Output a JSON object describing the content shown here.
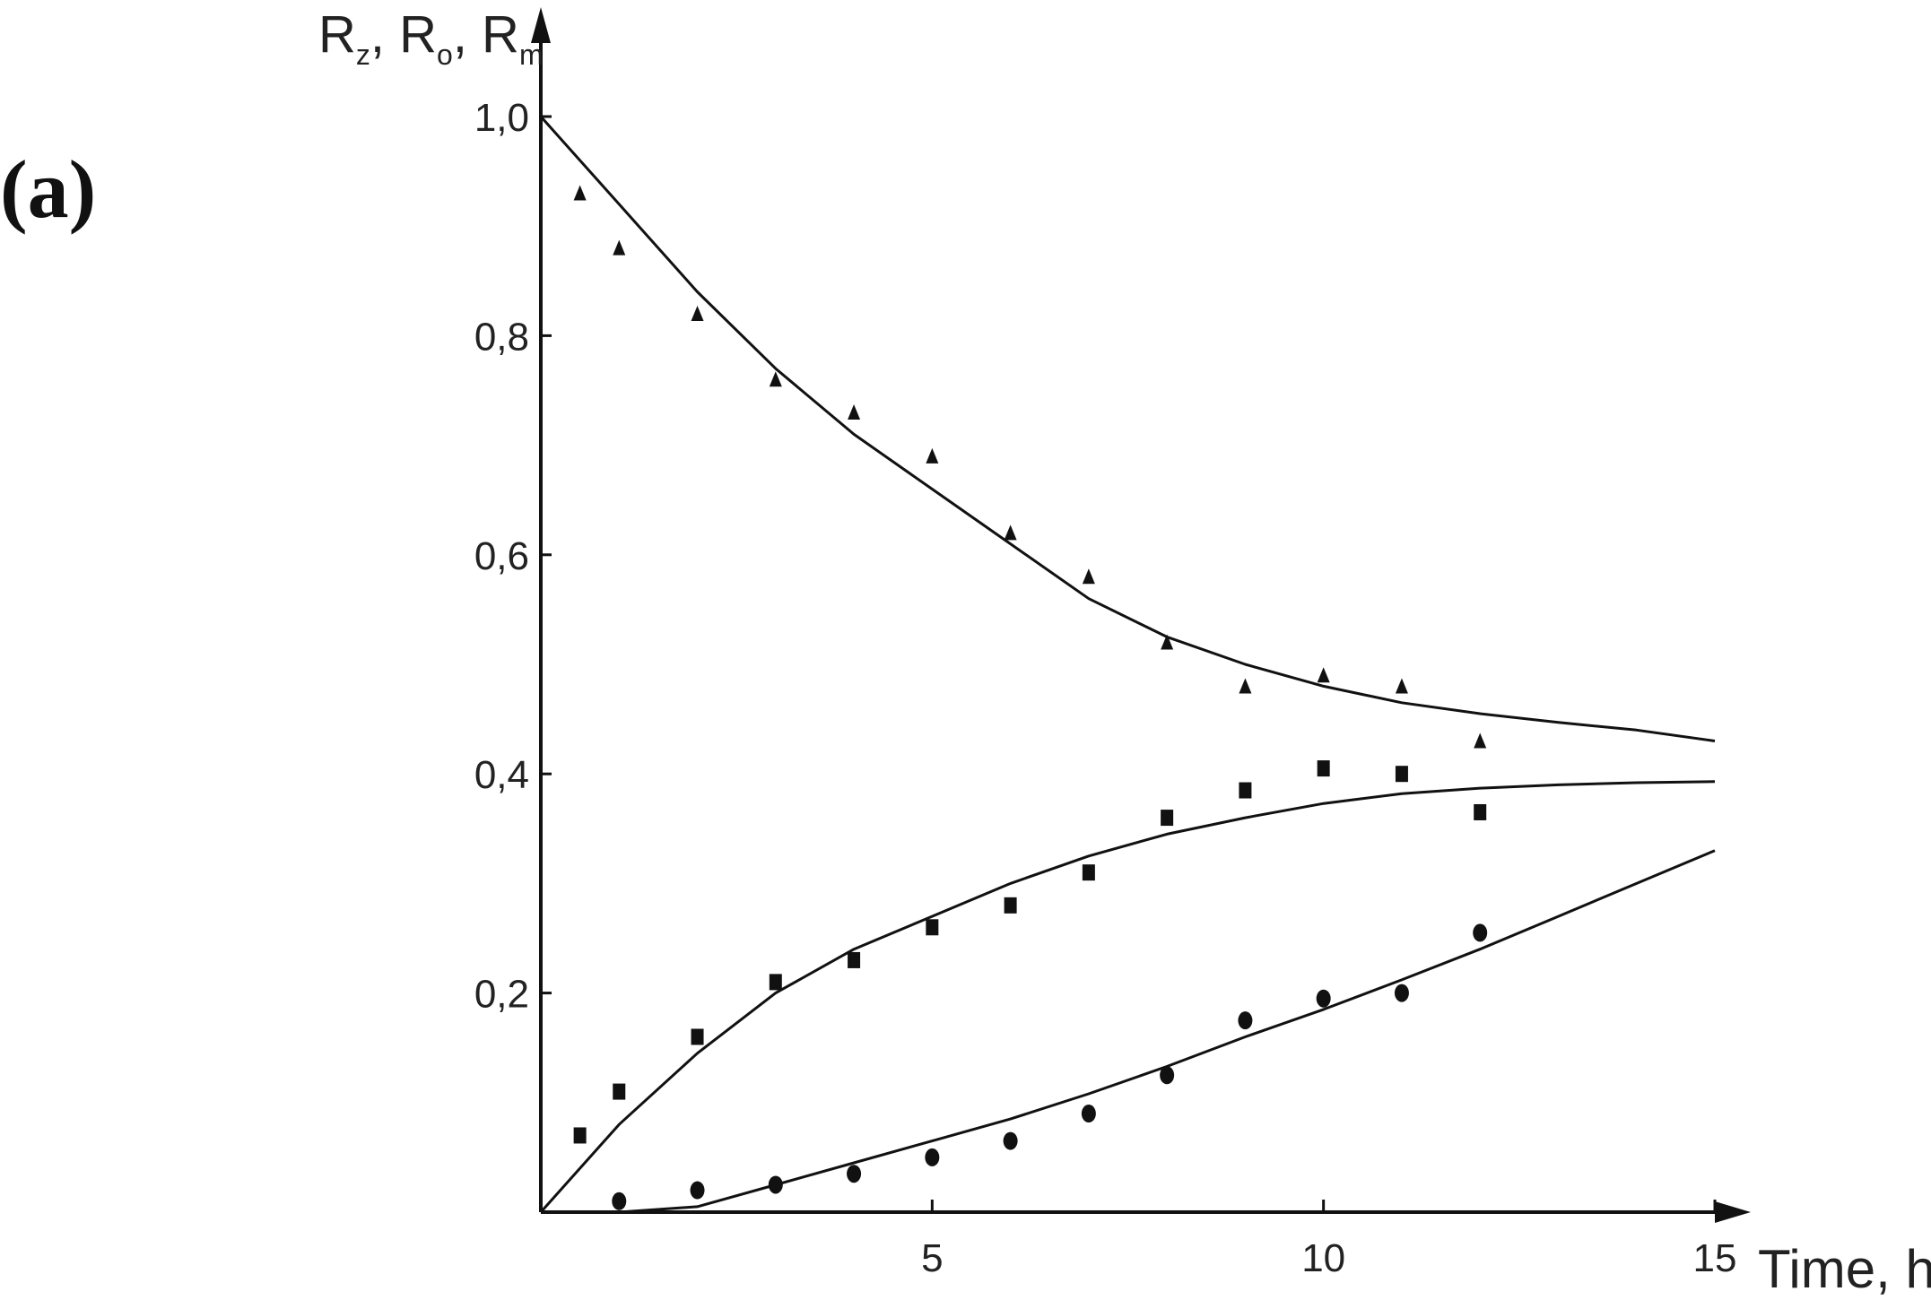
{
  "panel_label": "(a)",
  "chart_data": {
    "type": "scatter",
    "title": "",
    "ylabel": {
      "text": "R",
      "subs": [
        "z",
        "o",
        "m"
      ],
      "sep": ", "
    },
    "xlabel": "Time, h",
    "xlim": [
      0,
      15
    ],
    "ylim": [
      0,
      1.0
    ],
    "x_ticks": [
      "5",
      "10",
      "15"
    ],
    "x_tick_values": [
      5,
      10,
      15
    ],
    "y_ticks": [
      "0,2",
      "0,4",
      "0,6",
      "0,8",
      "1,0"
    ],
    "y_tick_values": [
      0.2,
      0.4,
      0.6,
      0.8,
      1.0
    ],
    "grid": false,
    "legend": "none",
    "series": [
      {
        "marker": "triangle",
        "x": [
          0.5,
          1,
          2,
          3,
          4,
          5,
          6,
          7,
          8,
          9,
          10,
          11,
          12
        ],
        "y": [
          0.93,
          0.88,
          0.82,
          0.76,
          0.73,
          0.69,
          0.62,
          0.58,
          0.52,
          0.48,
          0.49,
          0.48,
          0.43
        ],
        "fit_x": [
          0,
          1,
          2,
          3,
          4,
          5,
          6,
          7,
          8,
          9,
          10,
          11,
          12,
          13,
          14,
          15
        ],
        "fit_y": [
          1.0,
          0.92,
          0.84,
          0.77,
          0.71,
          0.66,
          0.61,
          0.56,
          0.525,
          0.5,
          0.48,
          0.465,
          0.455,
          0.447,
          0.44,
          0.43
        ]
      },
      {
        "marker": "square",
        "x": [
          0.5,
          1,
          2,
          3,
          4,
          5,
          6,
          7,
          8,
          9,
          10,
          11,
          12
        ],
        "y": [
          0.07,
          0.11,
          0.16,
          0.21,
          0.23,
          0.26,
          0.28,
          0.31,
          0.36,
          0.385,
          0.405,
          0.4,
          0.365
        ],
        "fit_x": [
          0,
          1,
          2,
          3,
          4,
          5,
          6,
          7,
          8,
          9,
          10,
          11,
          12,
          13,
          14,
          15
        ],
        "fit_y": [
          0.0,
          0.08,
          0.145,
          0.2,
          0.24,
          0.27,
          0.3,
          0.325,
          0.345,
          0.36,
          0.373,
          0.382,
          0.387,
          0.39,
          0.392,
          0.393
        ]
      },
      {
        "marker": "circle",
        "x": [
          1,
          2,
          3,
          4,
          5,
          6,
          7,
          8,
          9,
          10,
          11,
          12
        ],
        "y": [
          0.01,
          0.02,
          0.025,
          0.035,
          0.05,
          0.065,
          0.09,
          0.125,
          0.175,
          0.195,
          0.2,
          0.255
        ],
        "fit_x": [
          0,
          1,
          2,
          3,
          4,
          5,
          6,
          7,
          8,
          9,
          10,
          11,
          12,
          13,
          14,
          15
        ],
        "fit_y": [
          0.0,
          0.0,
          0.005,
          0.025,
          0.045,
          0.065,
          0.085,
          0.108,
          0.133,
          0.16,
          0.185,
          0.212,
          0.24,
          0.27,
          0.3,
          0.33
        ]
      }
    ]
  }
}
